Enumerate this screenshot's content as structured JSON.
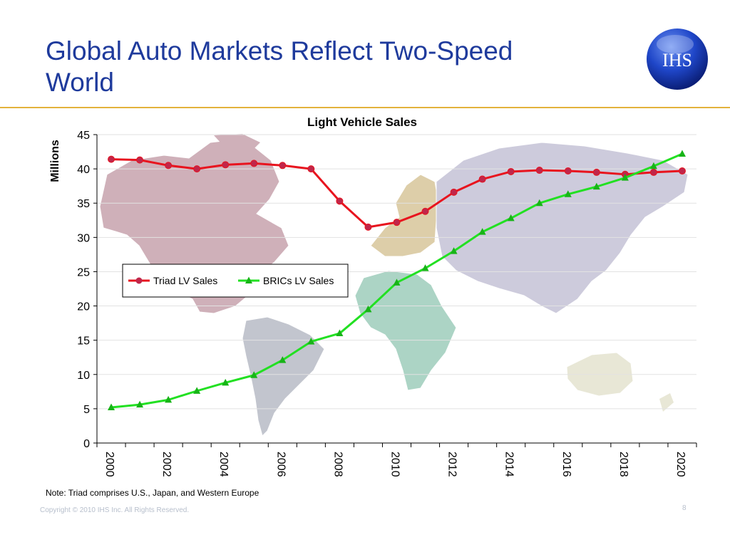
{
  "slide": {
    "title": "Global Auto Markets Reflect Two-Speed World",
    "logo_text": "IHS",
    "note": "Note: Triad comprises U.S., Japan, and Western Europe",
    "copyright": "Copyright © 2010 IHS Inc. All Rights Reserved.",
    "page_number": "8"
  },
  "colors": {
    "title": "#1e3a9c",
    "rule": "#e3b23c",
    "triad": "#e8141e",
    "triad_marker": "#c0264a",
    "brics": "#22e022",
    "brics_marker": "#17b417",
    "grid": "#e2e2e2"
  },
  "chart_data": {
    "type": "line",
    "title": "Light Vehicle Sales",
    "xlabel": "",
    "ylabel": "Millions",
    "ylim": [
      0,
      45
    ],
    "yticks": [
      "0",
      "5",
      "10",
      "15",
      "20",
      "25",
      "30",
      "35",
      "40",
      "45"
    ],
    "x": [
      2000,
      2001,
      2002,
      2003,
      2004,
      2005,
      2006,
      2007,
      2008,
      2009,
      2010,
      2011,
      2012,
      2013,
      2014,
      2015,
      2016,
      2017,
      2018,
      2019,
      2020
    ],
    "xticks": [
      "2000",
      "2002",
      "2004",
      "2006",
      "2008",
      "2010",
      "2012",
      "2014",
      "2016",
      "2018",
      "2020"
    ],
    "grid": "horizontal",
    "legend_position": "middle-left",
    "background": "world map illustration",
    "series": [
      {
        "name": "Triad LV Sales",
        "marker": "circle",
        "values": [
          41.4,
          41.3,
          40.5,
          40.0,
          40.6,
          40.8,
          40.5,
          40.0,
          35.3,
          31.5,
          32.2,
          33.8,
          36.6,
          38.5,
          39.6,
          39.8,
          39.7,
          39.5,
          39.2,
          39.5,
          39.7
        ]
      },
      {
        "name": "BRICs LV Sales",
        "marker": "triangle",
        "values": [
          5.2,
          5.6,
          6.3,
          7.6,
          8.8,
          9.9,
          12.1,
          14.8,
          16.0,
          19.5,
          23.4,
          25.5,
          28.0,
          30.8,
          32.8,
          35.0,
          36.3,
          37.4,
          38.7,
          40.4,
          42.2
        ]
      }
    ]
  }
}
